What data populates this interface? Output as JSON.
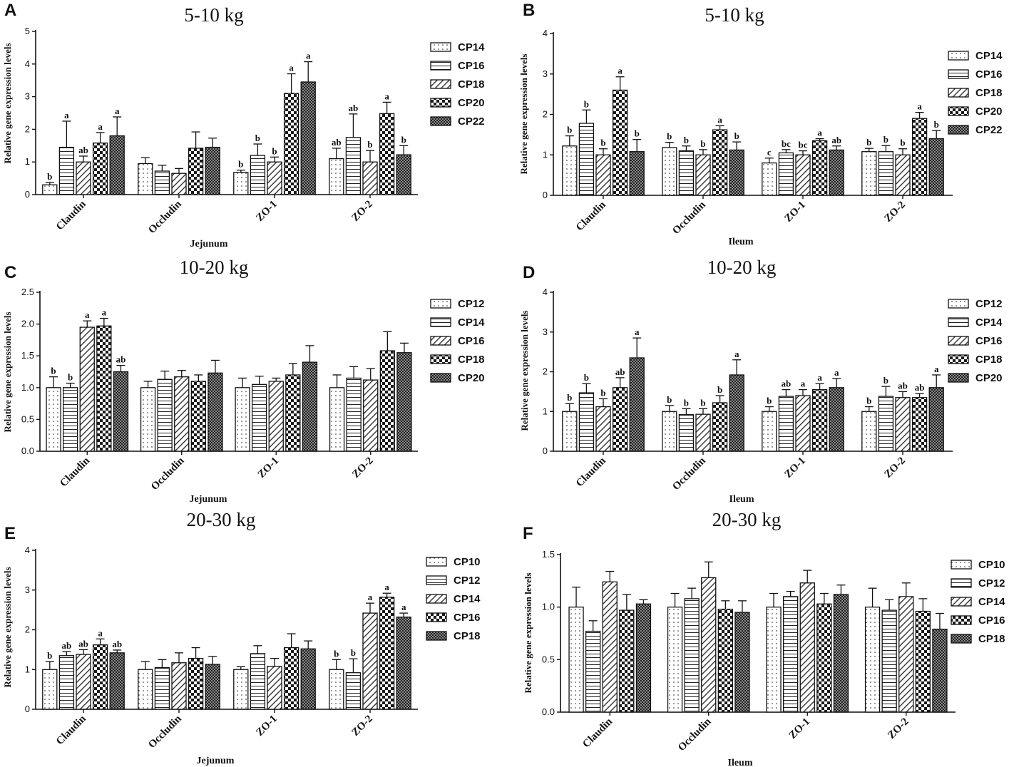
{
  "figure": {
    "panels": [
      {
        "letter": "A",
        "title": "5-10 kg",
        "ylabel": "Relative gene expression levels",
        "xlabel": "Jejunum",
        "yticks": [
          "0",
          "1",
          "2",
          "3",
          "4",
          "5"
        ]
      },
      {
        "letter": "B",
        "title": "5-10 kg",
        "ylabel": "Relative gene expression levels",
        "xlabel": "Ileum",
        "yticks": [
          "0",
          "1",
          "2",
          "3",
          "4"
        ]
      },
      {
        "letter": "C",
        "title": "10-20 kg",
        "ylabel": "Relative gene expression levels",
        "xlabel": "Jejunum",
        "yticks": [
          "0.0",
          "0.5",
          "1.0",
          "1.5",
          "2.0",
          "2.5"
        ]
      },
      {
        "letter": "D",
        "title": "10-20 kg",
        "ylabel": "Relative gene expression levels",
        "xlabel": "Ileum",
        "yticks": [
          "0",
          "1",
          "2",
          "3",
          "4"
        ]
      },
      {
        "letter": "E",
        "title": "20-30 kg",
        "ylabel": "Relative gene expression levels",
        "xlabel": "Jejunum",
        "yticks": [
          "0",
          "1",
          "2",
          "3",
          "4"
        ]
      },
      {
        "letter": "F",
        "title": "20-30 kg",
        "ylabel": "Relative gene expression levels",
        "xlabel": "Ileum",
        "yticks": [
          "0.0",
          "0.5",
          "1.0",
          "1.5"
        ]
      }
    ]
  },
  "colors": {
    "ink": "#111111",
    "background": "#ffffff"
  },
  "chart_data": [
    {
      "type": "bar",
      "panel": "A",
      "title": "5-10 kg",
      "xlabel": "Jejunum",
      "ylabel": "Relative gene expression levels",
      "ylim": [
        0,
        5
      ],
      "categories": [
        "Claudin",
        "Occludin",
        "ZO-1",
        "ZO-2"
      ],
      "series": [
        {
          "name": "CP14",
          "pattern": "dots",
          "values": [
            0.3,
            0.95,
            0.68,
            1.1
          ],
          "errors": [
            0.07,
            0.18,
            0.07,
            0.32
          ],
          "labels": [
            "b",
            "",
            "b",
            "ab"
          ]
        },
        {
          "name": "CP16",
          "pattern": "hlines",
          "values": [
            1.45,
            0.72,
            1.2,
            1.75
          ],
          "errors": [
            0.8,
            0.18,
            0.35,
            0.72
          ],
          "labels": [
            "a",
            "",
            "b",
            "ab"
          ]
        },
        {
          "name": "CP18",
          "pattern": "diag",
          "values": [
            1.0,
            0.65,
            1.0,
            1.0
          ],
          "errors": [
            0.18,
            0.15,
            0.15,
            0.35
          ],
          "labels": [
            "ab",
            "",
            "b",
            "b"
          ]
        },
        {
          "name": "CP20",
          "pattern": "checker",
          "values": [
            1.58,
            1.42,
            3.1,
            2.48
          ],
          "errors": [
            0.32,
            0.5,
            0.6,
            0.35
          ],
          "labels": [
            "a",
            "",
            "a",
            "a"
          ]
        },
        {
          "name": "CP22",
          "pattern": "finechecker",
          "values": [
            1.8,
            1.45,
            3.45,
            1.22
          ],
          "errors": [
            0.58,
            0.28,
            0.62,
            0.28
          ],
          "labels": [
            "a",
            "",
            "a",
            "b"
          ]
        }
      ]
    },
    {
      "type": "bar",
      "panel": "B",
      "title": "5-10 kg",
      "xlabel": "Ileum",
      "ylabel": "Relative gene expression levels",
      "ylim": [
        0,
        4
      ],
      "categories": [
        "Claudin",
        "Occludin",
        "ZO-1",
        "ZO-2"
      ],
      "series": [
        {
          "name": "CP14",
          "pattern": "dots",
          "values": [
            1.22,
            1.18,
            0.8,
            1.08
          ],
          "errors": [
            0.25,
            0.13,
            0.12,
            0.08
          ],
          "labels": [
            "b",
            "b",
            "c",
            "b"
          ]
        },
        {
          "name": "CP16",
          "pattern": "hlines",
          "values": [
            1.78,
            1.1,
            1.05,
            1.08
          ],
          "errors": [
            0.33,
            0.12,
            0.08,
            0.15
          ],
          "labels": [
            "b",
            "b",
            "bc",
            "b"
          ]
        },
        {
          "name": "CP18",
          "pattern": "diag",
          "values": [
            1.0,
            1.0,
            1.0,
            1.0
          ],
          "errors": [
            0.15,
            0.13,
            0.1,
            0.15
          ],
          "labels": [
            "b",
            "b",
            "bc",
            "b"
          ]
        },
        {
          "name": "CP20",
          "pattern": "checker",
          "values": [
            2.6,
            1.62,
            1.35,
            1.9
          ],
          "errors": [
            0.33,
            0.1,
            0.05,
            0.15
          ],
          "labels": [
            "a",
            "a",
            "a",
            "a"
          ]
        },
        {
          "name": "CP22",
          "pattern": "finechecker",
          "values": [
            1.08,
            1.12,
            1.12,
            1.4
          ],
          "errors": [
            0.3,
            0.2,
            0.1,
            0.2
          ],
          "labels": [
            "b",
            "b",
            "ab",
            "b"
          ]
        }
      ]
    },
    {
      "type": "bar",
      "panel": "C",
      "title": "10-20 kg",
      "xlabel": "Jejunum",
      "ylabel": "Relative gene expression levels",
      "ylim": [
        0,
        2.5
      ],
      "categories": [
        "Claudin",
        "Occludin",
        "ZO-1",
        "ZO-2"
      ],
      "series": [
        {
          "name": "CP12",
          "pattern": "dots",
          "values": [
            1.0,
            1.0,
            1.0,
            1.0
          ],
          "errors": [
            0.17,
            0.1,
            0.15,
            0.2
          ],
          "labels": [
            "b",
            "",
            "",
            ""
          ]
        },
        {
          "name": "CP14",
          "pattern": "hlines",
          "values": [
            1.0,
            1.13,
            1.05,
            1.15
          ],
          "errors": [
            0.07,
            0.13,
            0.13,
            0.18
          ],
          "labels": [
            "b",
            "",
            "",
            ""
          ]
        },
        {
          "name": "CP16",
          "pattern": "diag",
          "values": [
            1.95,
            1.17,
            1.1,
            1.12
          ],
          "errors": [
            0.1,
            0.1,
            0.05,
            0.18
          ],
          "labels": [
            "a",
            "",
            "",
            ""
          ]
        },
        {
          "name": "CP18",
          "pattern": "checker",
          "values": [
            1.97,
            1.1,
            1.2,
            1.58
          ],
          "errors": [
            0.12,
            0.1,
            0.18,
            0.3
          ],
          "labels": [
            "a",
            "",
            "",
            ""
          ]
        },
        {
          "name": "CP20",
          "pattern": "finechecker",
          "values": [
            1.25,
            1.23,
            1.4,
            1.55
          ],
          "errors": [
            0.1,
            0.2,
            0.26,
            0.15
          ],
          "labels": [
            "ab",
            "",
            "",
            ""
          ]
        }
      ]
    },
    {
      "type": "bar",
      "panel": "D",
      "title": "10-20 kg",
      "xlabel": "Ileum",
      "ylabel": "Relative gene expression levels",
      "ylim": [
        0,
        4
      ],
      "categories": [
        "Claudin",
        "Occludin",
        "ZO-1",
        "ZO-2"
      ],
      "series": [
        {
          "name": "CP12",
          "pattern": "dots",
          "values": [
            1.0,
            1.0,
            1.0,
            1.0
          ],
          "errors": [
            0.2,
            0.15,
            0.12,
            0.12
          ],
          "labels": [
            "b",
            "b",
            "b",
            "b"
          ]
        },
        {
          "name": "CP14",
          "pattern": "hlines",
          "values": [
            1.47,
            0.92,
            1.38,
            1.38
          ],
          "errors": [
            0.23,
            0.15,
            0.17,
            0.25
          ],
          "labels": [
            "b",
            "b",
            "ab",
            "b"
          ]
        },
        {
          "name": "CP16",
          "pattern": "diag",
          "values": [
            1.12,
            0.93,
            1.4,
            1.35
          ],
          "errors": [
            0.2,
            0.14,
            0.15,
            0.15
          ],
          "labels": [
            "b",
            "b",
            "a",
            "ab"
          ]
        },
        {
          "name": "CP18",
          "pattern": "checker",
          "values": [
            1.6,
            1.22,
            1.55,
            1.35
          ],
          "errors": [
            0.25,
            0.18,
            0.15,
            0.1
          ],
          "labels": [
            "ab",
            "b",
            "a",
            "ab"
          ]
        },
        {
          "name": "CP20",
          "pattern": "finechecker",
          "values": [
            2.35,
            1.92,
            1.6,
            1.6
          ],
          "errors": [
            0.5,
            0.38,
            0.23,
            0.32
          ],
          "labels": [
            "a",
            "a",
            "a",
            "a"
          ]
        }
      ]
    },
    {
      "type": "bar",
      "panel": "E",
      "title": "20-30 kg",
      "xlabel": "Jejunum",
      "ylabel": "Relative gene expression levels",
      "ylim": [
        0,
        4
      ],
      "categories": [
        "Claudin",
        "Occludin",
        "ZO-1",
        "ZO-2"
      ],
      "series": [
        {
          "name": "CP10",
          "pattern": "dots",
          "values": [
            1.0,
            1.0,
            1.0,
            1.0
          ],
          "errors": [
            0.2,
            0.2,
            0.07,
            0.25
          ],
          "labels": [
            "b",
            "",
            "",
            "b"
          ]
        },
        {
          "name": "CP12",
          "pattern": "hlines",
          "values": [
            1.35,
            1.05,
            1.4,
            0.92
          ],
          "errors": [
            0.1,
            0.2,
            0.2,
            0.35
          ],
          "labels": [
            "ab",
            "",
            "",
            "b"
          ]
        },
        {
          "name": "CP14",
          "pattern": "diag",
          "values": [
            1.38,
            1.17,
            1.08,
            2.42
          ],
          "errors": [
            0.12,
            0.25,
            0.2,
            0.25
          ],
          "labels": [
            "ab",
            "",
            "",
            "a"
          ]
        },
        {
          "name": "CP16",
          "pattern": "checker",
          "values": [
            1.62,
            1.28,
            1.55,
            2.82
          ],
          "errors": [
            0.15,
            0.27,
            0.35,
            0.1
          ],
          "labels": [
            "a",
            "",
            "",
            "a"
          ]
        },
        {
          "name": "CP18",
          "pattern": "finechecker",
          "values": [
            1.42,
            1.13,
            1.52,
            2.32
          ],
          "errors": [
            0.07,
            0.2,
            0.2,
            0.1
          ],
          "labels": [
            "ab",
            "",
            "",
            "a"
          ]
        }
      ]
    },
    {
      "type": "bar",
      "panel": "F",
      "title": "20-30 kg",
      "xlabel": "Ileum",
      "ylabel": "Relative gene expression levels",
      "ylim": [
        0,
        1.5
      ],
      "categories": [
        "Claudin",
        "Occludin",
        "ZO-1",
        "ZO-2"
      ],
      "series": [
        {
          "name": "CP10",
          "pattern": "dots",
          "values": [
            1.0,
            1.0,
            1.0,
            1.0
          ],
          "errors": [
            0.19,
            0.13,
            0.13,
            0.18
          ],
          "labels": [
            "",
            "",
            "",
            ""
          ]
        },
        {
          "name": "CP12",
          "pattern": "hlines",
          "values": [
            0.77,
            1.08,
            1.1,
            0.97
          ],
          "errors": [
            0.1,
            0.1,
            0.05,
            0.1
          ],
          "labels": [
            "",
            "",
            "",
            ""
          ]
        },
        {
          "name": "CP14",
          "pattern": "diag",
          "values": [
            1.24,
            1.28,
            1.23,
            1.1
          ],
          "errors": [
            0.1,
            0.15,
            0.12,
            0.13
          ],
          "labels": [
            "",
            "",
            "",
            ""
          ]
        },
        {
          "name": "CP16",
          "pattern": "checker",
          "values": [
            0.97,
            0.98,
            1.03,
            0.96
          ],
          "errors": [
            0.15,
            0.08,
            0.1,
            0.12
          ],
          "labels": [
            "",
            "",
            "",
            ""
          ]
        },
        {
          "name": "CP18",
          "pattern": "finechecker",
          "values": [
            1.03,
            0.95,
            1.12,
            0.79
          ],
          "errors": [
            0.04,
            0.11,
            0.09,
            0.15
          ],
          "labels": [
            "",
            "",
            "",
            ""
          ]
        }
      ]
    }
  ]
}
